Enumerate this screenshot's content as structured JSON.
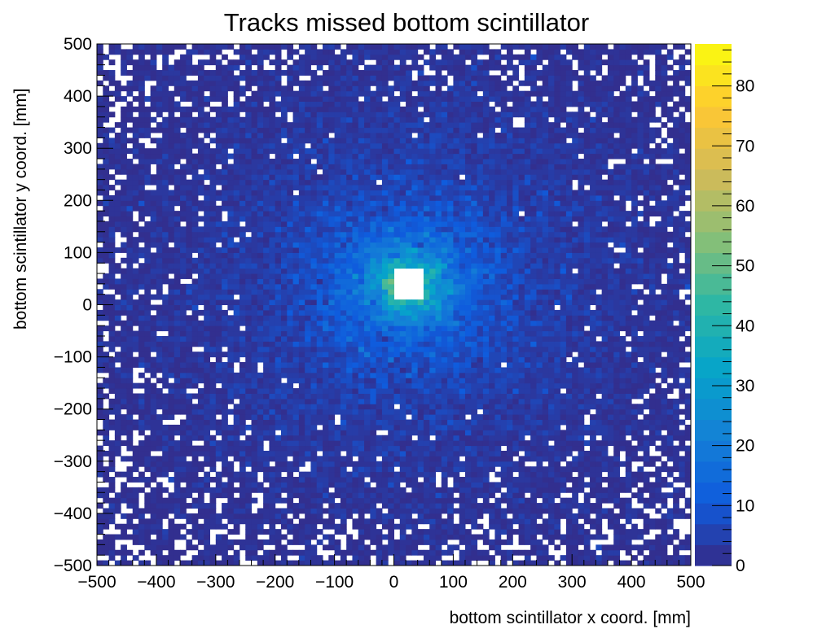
{
  "chart_data": {
    "type": "heatmap",
    "title": "Tracks missed bottom scintillator",
    "xlabel": "bottom scintillator x coord. [mm]",
    "ylabel": "bottom scintillator y coord. [mm]",
    "xlim": [
      -500,
      500
    ],
    "ylim": [
      -500,
      500
    ],
    "bins": [
      100,
      100
    ],
    "x_ticks": [
      -500,
      -400,
      -300,
      -200,
      -100,
      0,
      100,
      200,
      300,
      400,
      500
    ],
    "y_ticks": [
      -500,
      -400,
      -300,
      -200,
      -100,
      0,
      100,
      200,
      300,
      400,
      500
    ],
    "x_tick_labels": [
      "−500",
      "−400",
      "−300",
      "−200",
      "−100",
      "0",
      "100",
      "200",
      "300",
      "400",
      "500"
    ],
    "y_tick_labels": [
      "−500",
      "−400",
      "−300",
      "−200",
      "−100",
      "0",
      "100",
      "200",
      "300",
      "400",
      "500"
    ],
    "z_range": [
      0,
      87
    ],
    "z_ticks": [
      0,
      10,
      20,
      30,
      40,
      50,
      60,
      70,
      80
    ],
    "z_tick_labels": [
      "0",
      "10",
      "20",
      "30",
      "40",
      "50",
      "60",
      "70",
      "80"
    ],
    "colormap": "parula",
    "peak": {
      "x": 25,
      "y": 40,
      "max_count": 87
    },
    "empty_region": {
      "x": [
        0,
        50
      ],
      "y": [
        10,
        70
      ]
    },
    "background_level": 1,
    "palette": [
      "#352a87",
      "#0f5cdd",
      "#1481d6",
      "#06a4ca",
      "#2eb7a4",
      "#87bf77",
      "#d1bb59",
      "#fec832",
      "#f9fb0e"
    ]
  }
}
